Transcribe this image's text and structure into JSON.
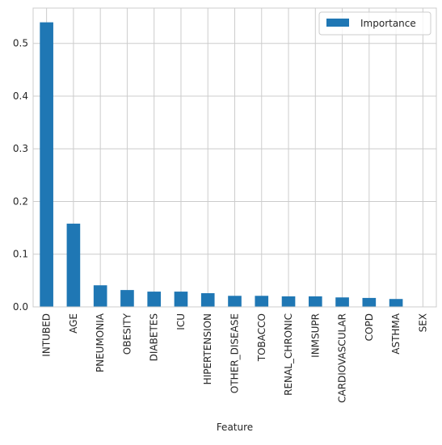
{
  "chart_data": {
    "type": "bar",
    "title": "",
    "xlabel": "Feature",
    "ylabel": "",
    "categories": [
      "INTUBED",
      "AGE",
      "PNEUMONIA",
      "OBESITY",
      "DIABETES",
      "ICU",
      "HIPERTENSION",
      "OTHER_DISEASE",
      "TOBACCO",
      "RENAL_CHRONIC",
      "INMSUPR",
      "CARDIOVASCULAR",
      "COPD",
      "ASTHMA",
      "SEX"
    ],
    "series": [
      {
        "name": "Importance",
        "color": "#1f77b4",
        "values": [
          0.54,
          0.158,
          0.041,
          0.032,
          0.029,
          0.029,
          0.026,
          0.021,
          0.021,
          0.02,
          0.02,
          0.018,
          0.017,
          0.015,
          0.0
        ]
      }
    ],
    "ylim": [
      0,
      0.567
    ],
    "yticks": [
      0.0,
      0.1,
      0.2,
      0.3,
      0.4,
      0.5
    ],
    "ytick_labels": [
      "0.0",
      "0.1",
      "0.2",
      "0.3",
      "0.4",
      "0.5"
    ],
    "grid": true,
    "legend": "top-right",
    "style": "seaborn-whitegrid"
  }
}
